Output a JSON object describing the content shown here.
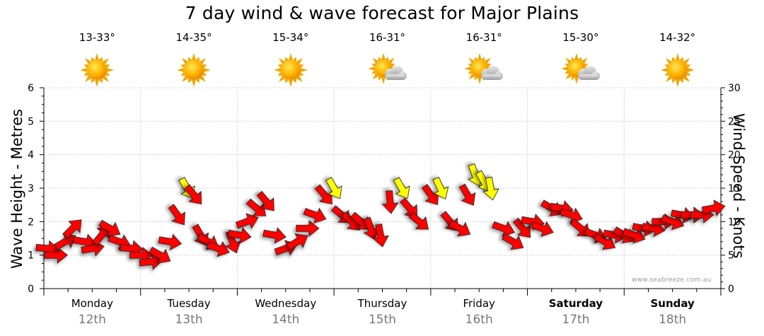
{
  "title": "7 day wind & wave forecast for Major Plains",
  "watermark": "www.seabreeze.com.au",
  "axes": {
    "left_label": "Wave Height - Metres",
    "right_label": "Wind Speed - Knots",
    "left_ticks": [
      "0",
      "1",
      "2",
      "3",
      "4",
      "5",
      "6"
    ],
    "right_ticks": [
      "0",
      "5",
      "10",
      "15",
      "20",
      "25",
      "30"
    ]
  },
  "days": [
    {
      "name": "Monday",
      "date": "12th",
      "temp": "13-33°",
      "icon": "sunny-icon",
      "bold": false
    },
    {
      "name": "Tuesday",
      "date": "13th",
      "temp": "14-35°",
      "icon": "sunny-icon",
      "bold": false
    },
    {
      "name": "Wednesday",
      "date": "14th",
      "temp": "15-34°",
      "icon": "sunny-icon",
      "bold": false
    },
    {
      "name": "Thursday",
      "date": "15th",
      "temp": "16-31°",
      "icon": "partly-cloudy-icon",
      "bold": false
    },
    {
      "name": "Friday",
      "date": "16th",
      "temp": "16-31°",
      "icon": "partly-cloudy-icon",
      "bold": false
    },
    {
      "name": "Saturday",
      "date": "17th",
      "temp": "15-30°",
      "icon": "partly-cloudy-icon",
      "bold": true
    },
    {
      "name": "Sunday",
      "date": "18th",
      "temp": "14-32°",
      "icon": "sunny-icon",
      "bold": true
    }
  ],
  "colors": {
    "red": "#ff0000",
    "yellow": "#ffff00",
    "arrow_outline": "#222222",
    "grid": "#aaaaaa"
  },
  "chart_data": {
    "type": "scatter",
    "title": "7 day wind & wave forecast for Major Plains",
    "ylabel": "Wave Height - Metres",
    "y2label": "Wind Speed - Knots",
    "ylim": [
      0,
      6
    ],
    "y2lim": [
      0,
      30
    ],
    "categories": [
      "Monday 12th",
      "Tuesday 13th",
      "Wednesday 14th",
      "Thursday 15th",
      "Friday 16th",
      "Saturday 17th",
      "Sunday 18th"
    ],
    "grid": true,
    "x_unit": "days from start of Monday 12th",
    "series": [
      {
        "name": "Wind Speed - Knots",
        "color_rule": "red below 15 knots, yellow 15 knots and above",
        "x": [
          0.03,
          0.12,
          0.22,
          0.3,
          0.42,
          0.5,
          0.6,
          0.68,
          0.78,
          0.9,
          1.0,
          1.1,
          1.2,
          1.3,
          1.38,
          1.48,
          1.55,
          1.62,
          1.7,
          1.8,
          1.95,
          2.02,
          2.1,
          2.2,
          2.3,
          2.38,
          2.5,
          2.62,
          2.72,
          2.8,
          2.9,
          3.0,
          3.08,
          3.18,
          3.28,
          3.38,
          3.48,
          3.58,
          3.7,
          3.78,
          3.88,
          4.0,
          4.1,
          4.2,
          4.3,
          4.38,
          4.46,
          4.55,
          4.62,
          4.75,
          4.85,
          4.95,
          5.05,
          5.15,
          5.25,
          5.35,
          5.45,
          5.55,
          5.7,
          5.8,
          5.9,
          6.0,
          6.1,
          6.2,
          6.3,
          6.4,
          6.5,
          6.6,
          6.7,
          6.8,
          6.92
        ],
        "speed": [
          6,
          5,
          7,
          9,
          7,
          6,
          8,
          9,
          7,
          6,
          5,
          4,
          5,
          7,
          11,
          15,
          14,
          8,
          7,
          6,
          7,
          8,
          10,
          12,
          13,
          8,
          6,
          7,
          9,
          11,
          14,
          15,
          11,
          10,
          10,
          9,
          8,
          13,
          15,
          12,
          10,
          14,
          15,
          10,
          9,
          14,
          17,
          16,
          15,
          9,
          7,
          9,
          10,
          9,
          12,
          12,
          11,
          9,
          8,
          7,
          8,
          8,
          8,
          9,
          9,
          10,
          10,
          11,
          11,
          11,
          12
        ],
        "dir_deg": [
          95,
          90,
          60,
          45,
          100,
          80,
          40,
          120,
          110,
          95,
          90,
          85,
          120,
          100,
          145,
          150,
          140,
          150,
          120,
          110,
          160,
          100,
          70,
          130,
          140,
          100,
          70,
          60,
          90,
          110,
          140,
          150,
          130,
          135,
          130,
          160,
          170,
          175,
          150,
          140,
          130,
          145,
          155,
          140,
          120,
          150,
          160,
          150,
          170,
          110,
          120,
          140,
          100,
          110,
          120,
          100,
          110,
          130,
          110,
          120,
          100,
          120,
          110,
          100,
          100,
          90,
          110,
          100,
          90,
          90,
          80
        ]
      }
    ]
  }
}
